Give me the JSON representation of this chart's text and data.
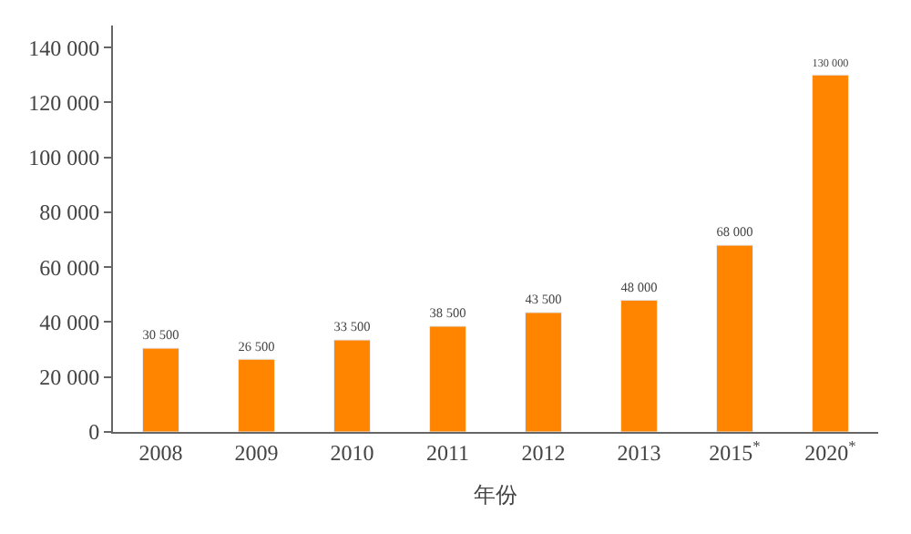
{
  "chart_data": {
    "type": "bar",
    "xlabel": "年份",
    "categories": [
      "2008",
      "2009",
      "2010",
      "2011",
      "2012",
      "2013",
      "2015$^{*}$",
      "2020$^{*}$"
    ],
    "values": [
      30500,
      26500,
      33500,
      38500,
      43500,
      48000,
      68000,
      130000
    ],
    "value_labels": [
      "30 500",
      "26 500",
      "33 500",
      "38 500",
      "43 500",
      "48 000",
      "68 000",
      "130 000"
    ],
    "color": "#ff8400",
    "ylim": [
      0,
      148000
    ],
    "yticks": [
      0,
      {
        "value": 20000,
        "label": "20 000"
      },
      {
        "value": 40000,
        "label": "40 000"
      },
      {
        "value": 60000,
        "label": "60 000"
      },
      {
        "value": 80000,
        "label": "80 000"
      },
      {
        "value": 100000,
        "label": "100 000"
      },
      {
        "value": 120000,
        "label": "120 000"
      },
      {
        "value": 140000,
        "label": "140 000"
      }
    ],
    "grid": false,
    "legend": false
  }
}
